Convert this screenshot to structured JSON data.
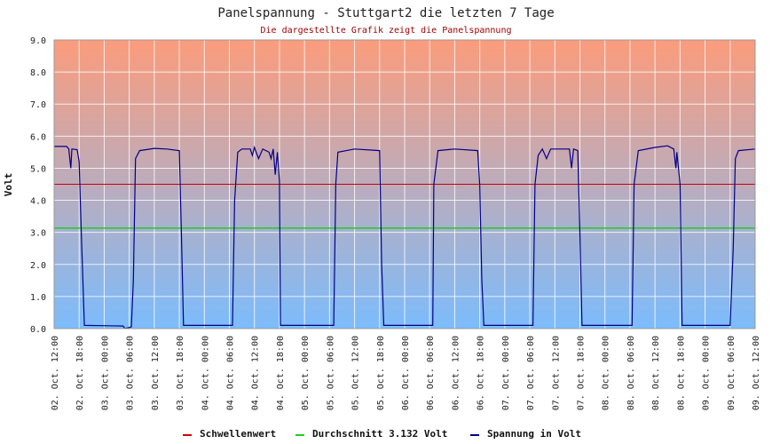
{
  "chart_data": {
    "type": "line",
    "title": "Panelspannung - Stuttgart2 die letzten 7 Tage",
    "subtitle": "Die dargestellte Grafik zeigt die Panelspannung",
    "ylabel": "Volt",
    "xlabel": "",
    "ylim": [
      0,
      9
    ],
    "yticks": [
      "0.0",
      "1.0",
      "2.0",
      "3.0",
      "4.0",
      "5.0",
      "6.0",
      "7.0",
      "8.0",
      "9.0"
    ],
    "x_tick_labels": [
      "02. Oct. 12:00",
      "02. Oct. 18:00",
      "03. Oct. 00:00",
      "03. Oct. 06:00",
      "03. Oct. 12:00",
      "03. Oct. 18:00",
      "04. Oct. 00:00",
      "04. Oct. 06:00",
      "04. Oct. 12:00",
      "04. Oct. 18:00",
      "05. Oct. 00:00",
      "05. Oct. 06:00",
      "05. Oct. 12:00",
      "05. Oct. 18:00",
      "06. Oct. 00:00",
      "06. Oct. 06:00",
      "06. Oct. 12:00",
      "06. Oct. 18:00",
      "07. Oct. 00:00",
      "07. Oct. 06:00",
      "07. Oct. 12:00",
      "07. Oct. 18:00",
      "08. Oct. 00:00",
      "08. Oct. 06:00",
      "08. Oct. 12:00",
      "08. Oct. 18:00",
      "09. Oct. 00:00",
      "09. Oct. 06:00",
      "09. Oct. 12:00"
    ],
    "grid": true,
    "background_gradient": {
      "top": "#fb9c7c",
      "bottom": "#7cbcfc"
    },
    "threshold": {
      "name": "Schwellenwert",
      "value": 4.5,
      "color": "#cc0000"
    },
    "average": {
      "name": "Durchschnitt 3.132 Volt",
      "value": 3.132,
      "color": "#22cc22"
    },
    "series": [
      {
        "name": "Spannung in Volt",
        "color": "#000088",
        "points": [
          [
            "02. Oct. 12:00",
            5.68
          ],
          [
            "02. Oct. 15:00",
            5.68
          ],
          [
            "02. Oct. 15:30",
            5.6
          ],
          [
            "02. Oct. 16:00",
            5.0
          ],
          [
            "02. Oct. 16:15",
            5.6
          ],
          [
            "02. Oct. 17:30",
            5.58
          ],
          [
            "02. Oct. 18:00",
            5.2
          ],
          [
            "02. Oct. 18:30",
            3.0
          ],
          [
            "02. Oct. 19:15",
            0.1
          ],
          [
            "03. Oct. 04:30",
            0.08
          ],
          [
            "03. Oct. 05:00",
            0.0
          ],
          [
            "03. Oct. 06:30",
            0.05
          ],
          [
            "03. Oct. 07:00",
            1.5
          ],
          [
            "03. Oct. 07:30",
            5.3
          ],
          [
            "03. Oct. 08:30",
            5.55
          ],
          [
            "03. Oct. 12:00",
            5.62
          ],
          [
            "03. Oct. 15:00",
            5.6
          ],
          [
            "03. Oct. 18:00",
            5.55
          ],
          [
            "03. Oct. 18:30",
            3.0
          ],
          [
            "03. Oct. 19:00",
            0.1
          ],
          [
            "04. Oct. 06:45",
            0.1
          ],
          [
            "04. Oct. 07:15",
            4.0
          ],
          [
            "04. Oct. 08:00",
            5.5
          ],
          [
            "04. Oct. 09:00",
            5.6
          ],
          [
            "04. Oct. 11:00",
            5.6
          ],
          [
            "04. Oct. 11:30",
            5.4
          ],
          [
            "04. Oct. 12:00",
            5.65
          ],
          [
            "04. Oct. 13:00",
            5.3
          ],
          [
            "04. Oct. 14:00",
            5.6
          ],
          [
            "04. Oct. 15:30",
            5.5
          ],
          [
            "04. Oct. 16:00",
            5.3
          ],
          [
            "04. Oct. 16:30",
            5.6
          ],
          [
            "04. Oct. 17:00",
            4.8
          ],
          [
            "04. Oct. 17:30",
            5.5
          ],
          [
            "04. Oct. 18:00",
            4.6
          ],
          [
            "04. Oct. 18:15",
            0.1
          ],
          [
            "05. Oct. 07:00",
            0.1
          ],
          [
            "05. Oct. 07:30",
            4.5
          ],
          [
            "05. Oct. 08:00",
            5.5
          ],
          [
            "05. Oct. 12:00",
            5.6
          ],
          [
            "05. Oct. 18:00",
            5.55
          ],
          [
            "05. Oct. 18:30",
            2.0
          ],
          [
            "05. Oct. 19:00",
            0.1
          ],
          [
            "06. Oct. 06:45",
            0.1
          ],
          [
            "06. Oct. 07:00",
            4.5
          ],
          [
            "06. Oct. 08:00",
            5.55
          ],
          [
            "06. Oct. 12:00",
            5.6
          ],
          [
            "06. Oct. 17:30",
            5.55
          ],
          [
            "06. Oct. 18:00",
            4.5
          ],
          [
            "06. Oct. 18:30",
            1.5
          ],
          [
            "06. Oct. 19:00",
            0.1
          ],
          [
            "07. Oct. 06:45",
            0.1
          ],
          [
            "07. Oct. 07:15",
            4.5
          ],
          [
            "07. Oct. 08:00",
            5.4
          ],
          [
            "07. Oct. 09:00",
            5.6
          ],
          [
            "07. Oct. 10:00",
            5.3
          ],
          [
            "07. Oct. 11:00",
            5.6
          ],
          [
            "07. Oct. 12:00",
            5.6
          ],
          [
            "07. Oct. 13:00",
            5.6
          ],
          [
            "07. Oct. 15:30",
            5.6
          ],
          [
            "07. Oct. 16:00",
            5.0
          ],
          [
            "07. Oct. 16:30",
            5.6
          ],
          [
            "07. Oct. 17:30",
            5.55
          ],
          [
            "07. Oct. 18:00",
            3.0
          ],
          [
            "07. Oct. 18:30",
            0.1
          ],
          [
            "08. Oct. 06:30",
            0.1
          ],
          [
            "08. Oct. 07:00",
            4.5
          ],
          [
            "08. Oct. 08:00",
            5.55
          ],
          [
            "08. Oct. 12:00",
            5.65
          ],
          [
            "08. Oct. 15:00",
            5.7
          ],
          [
            "08. Oct. 16:30",
            5.6
          ],
          [
            "08. Oct. 17:00",
            5.0
          ],
          [
            "08. Oct. 17:15",
            5.5
          ],
          [
            "08. Oct. 18:00",
            4.5
          ],
          [
            "08. Oct. 18:30",
            0.1
          ],
          [
            "09. Oct. 06:00",
            0.1
          ],
          [
            "09. Oct. 06:45",
            2.5
          ],
          [
            "09. Oct. 07:15",
            5.3
          ],
          [
            "09. Oct. 08:00",
            5.55
          ],
          [
            "09. Oct. 12:00",
            5.6
          ]
        ]
      }
    ],
    "legend": [
      {
        "label": "Schwellenwert",
        "color": "#cc0000"
      },
      {
        "label": "Durchschnitt 3.132 Volt",
        "color": "#22cc22"
      },
      {
        "label": "Spannung in Volt",
        "color": "#000088"
      }
    ],
    "legend_position": "bottom"
  }
}
